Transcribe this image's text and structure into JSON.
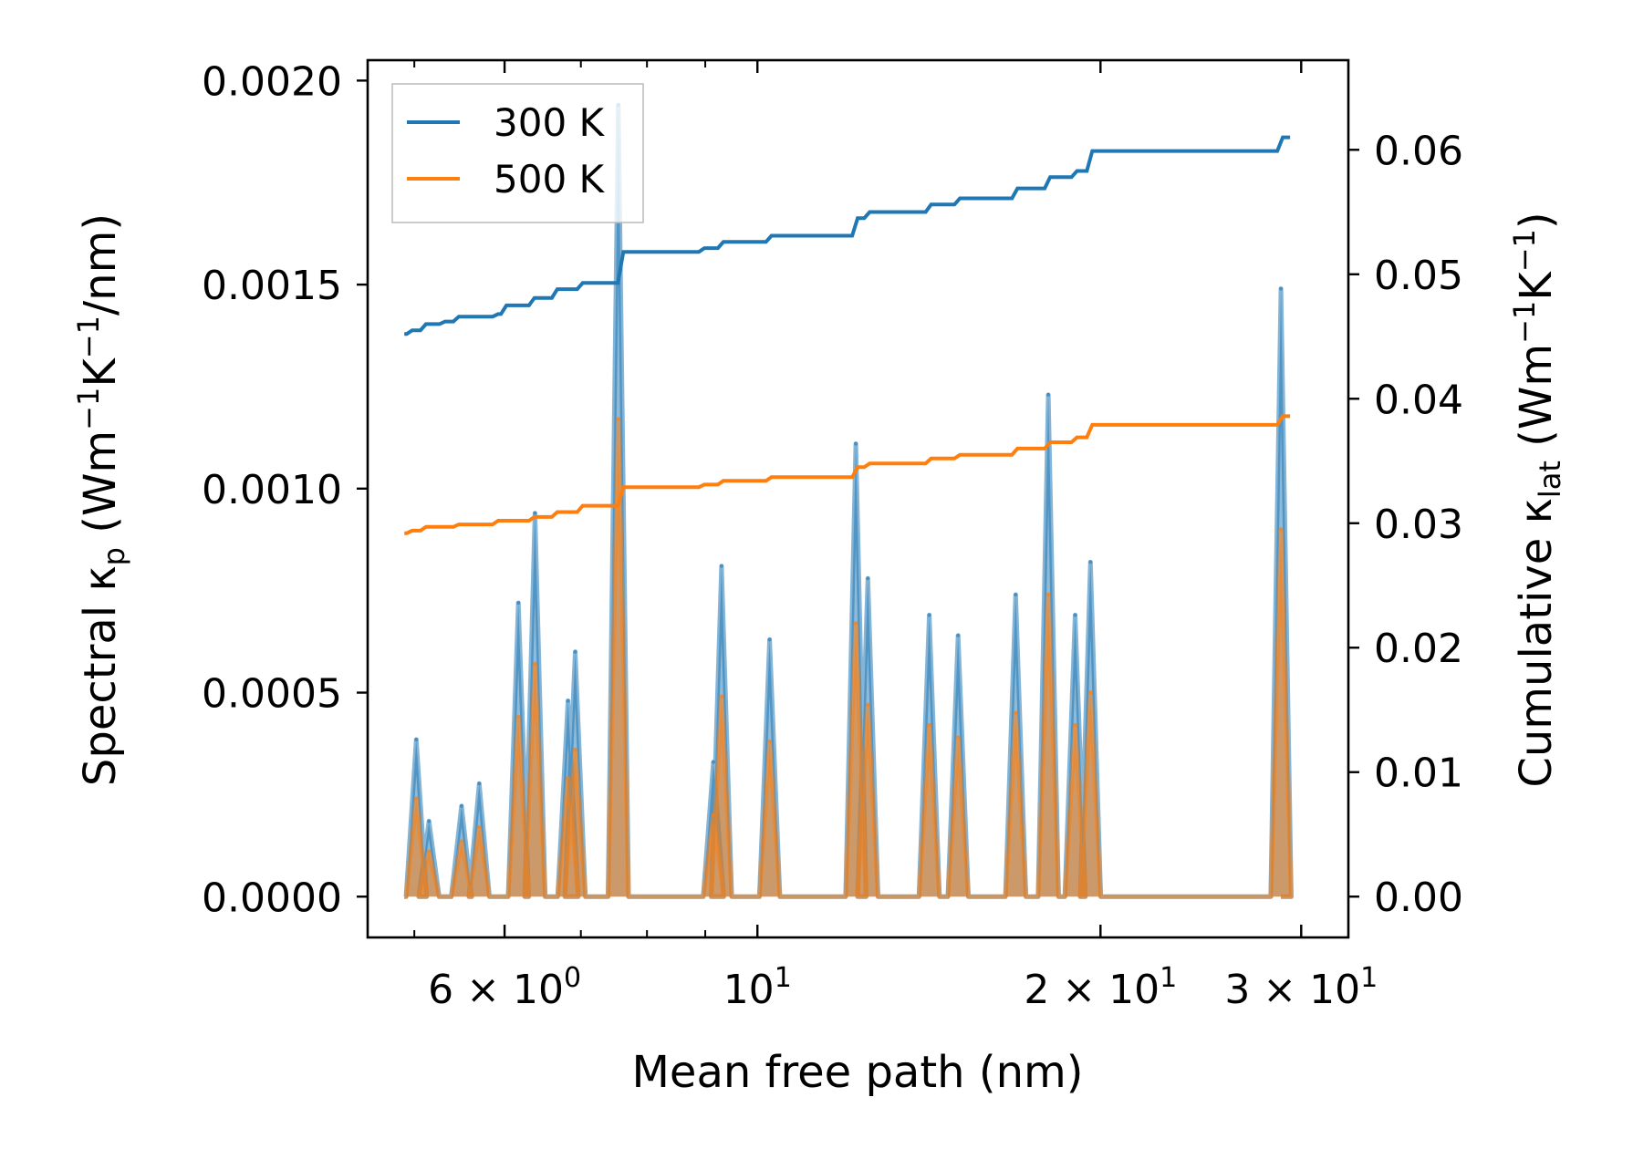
{
  "chart_data": {
    "type": "line",
    "xscale": "log",
    "xlabel": "Mean free path (nm)",
    "ylabel_left_parts": [
      "Spectral κ",
      "p",
      " (Wm",
      "−1",
      "K",
      "−1",
      "/nm)"
    ],
    "ylabel_right_parts": [
      "Cumulative κ",
      "lat",
      " (Wm",
      "−1",
      "K",
      "−1",
      ")"
    ],
    "xlim": [
      4.55,
      33
    ],
    "ylim_left": [
      -0.0001,
      0.00205
    ],
    "ylim_right": [
      -0.00328,
      0.0672
    ],
    "x_ticks": [
      {
        "value": 6,
        "mantissa": "6",
        "exp": "0"
      },
      {
        "value": 10,
        "mantissa": "",
        "exp": "1"
      },
      {
        "value": 20,
        "mantissa": "2",
        "exp": "1"
      },
      {
        "value": 30,
        "mantissa": "3",
        "exp": "1"
      }
    ],
    "x_minor_ticks": [
      5,
      7,
      8,
      9
    ],
    "y_left_ticks": [
      {
        "value": 0,
        "label": "0.0000"
      },
      {
        "value": 0.0005,
        "label": "0.0005"
      },
      {
        "value": 0.001,
        "label": "0.0010"
      },
      {
        "value": 0.0015,
        "label": "0.0015"
      },
      {
        "value": 0.002,
        "label": "0.0020"
      }
    ],
    "y_right_ticks": [
      {
        "value": 0,
        "label": "0.00"
      },
      {
        "value": 0.01,
        "label": "0.01"
      },
      {
        "value": 0.02,
        "label": "0.02"
      },
      {
        "value": 0.03,
        "label": "0.03"
      },
      {
        "value": 0.04,
        "label": "0.04"
      },
      {
        "value": 0.05,
        "label": "0.05"
      },
      {
        "value": 0.06,
        "label": "0.06"
      }
    ],
    "legend": {
      "position": "top-left",
      "entries": [
        "300 K",
        "500 K"
      ]
    },
    "series": [
      {
        "name": "300 K",
        "color": "#1f77b4",
        "cumulative": [
          [
            4.9,
            0.0452
          ],
          [
            4.96,
            0.0455
          ],
          [
            5.1,
            0.046
          ],
          [
            5.3,
            0.0462
          ],
          [
            5.45,
            0.0466
          ],
          [
            5.9,
            0.0468
          ],
          [
            6.0,
            0.0475
          ],
          [
            6.35,
            0.0481
          ],
          [
            6.65,
            0.0488
          ],
          [
            7.0,
            0.0493
          ],
          [
            7.6,
            0.0518
          ],
          [
            8.95,
            0.0521
          ],
          [
            9.3,
            0.0526
          ],
          [
            10.25,
            0.0531
          ],
          [
            12.2,
            0.0545
          ],
          [
            12.5,
            0.055
          ],
          [
            14.15,
            0.0556
          ],
          [
            15.0,
            0.0561
          ],
          [
            16.85,
            0.0569
          ],
          [
            18.0,
            0.0578
          ],
          [
            19.0,
            0.0583
          ],
          [
            19.6,
            0.0599
          ],
          [
            28.8,
            0.061
          ]
        ],
        "spikes": [
          [
            5.02,
            0.000385
          ],
          [
            5.15,
            0.000185
          ],
          [
            5.5,
            0.000222
          ],
          [
            5.7,
            0.000277
          ],
          [
            6.17,
            0.00072
          ],
          [
            6.38,
            0.00094
          ],
          [
            6.82,
            0.00048
          ],
          [
            6.92,
            0.0006
          ],
          [
            7.55,
            0.00194
          ],
          [
            9.15,
            0.00033
          ],
          [
            9.3,
            0.00081
          ],
          [
            10.25,
            0.00063
          ],
          [
            12.2,
            0.00111
          ],
          [
            12.5,
            0.00078
          ],
          [
            14.15,
            0.00069
          ],
          [
            15.0,
            0.00064
          ],
          [
            16.85,
            0.00074
          ],
          [
            18.0,
            0.00123
          ],
          [
            19.0,
            0.00069
          ],
          [
            19.6,
            0.00082
          ],
          [
            28.8,
            0.00149
          ]
        ]
      },
      {
        "name": "500 K",
        "color": "#ff7f0e",
        "cumulative": [
          [
            4.9,
            0.0292
          ],
          [
            4.96,
            0.0294
          ],
          [
            5.1,
            0.0297
          ],
          [
            5.45,
            0.0299
          ],
          [
            5.9,
            0.0302
          ],
          [
            6.35,
            0.0305
          ],
          [
            6.65,
            0.0309
          ],
          [
            7.0,
            0.0314
          ],
          [
            7.6,
            0.0329
          ],
          [
            8.95,
            0.0331
          ],
          [
            9.3,
            0.0334
          ],
          [
            10.25,
            0.0337
          ],
          [
            12.2,
            0.0345
          ],
          [
            12.5,
            0.0348
          ],
          [
            14.15,
            0.0352
          ],
          [
            15.0,
            0.0355
          ],
          [
            16.85,
            0.036
          ],
          [
            18.0,
            0.0365
          ],
          [
            19.0,
            0.0369
          ],
          [
            19.6,
            0.0379
          ],
          [
            28.8,
            0.0386
          ]
        ],
        "spikes": [
          [
            5.02,
            0.00024
          ],
          [
            5.15,
            0.00011
          ],
          [
            5.5,
            0.000135
          ],
          [
            5.7,
            0.00017
          ],
          [
            6.17,
            0.00044
          ],
          [
            6.38,
            0.00057
          ],
          [
            6.82,
            0.00029
          ],
          [
            6.92,
            0.00036
          ],
          [
            7.55,
            0.00117
          ],
          [
            9.15,
            0.0002
          ],
          [
            9.3,
            0.00049
          ],
          [
            10.25,
            0.00038
          ],
          [
            12.2,
            0.00067
          ],
          [
            12.5,
            0.00047
          ],
          [
            14.15,
            0.00042
          ],
          [
            15.0,
            0.00039
          ],
          [
            16.85,
            0.00045
          ],
          [
            18.0,
            0.00074
          ],
          [
            19.0,
            0.00042
          ],
          [
            19.6,
            0.0005
          ],
          [
            28.8,
            0.0009
          ]
        ]
      }
    ]
  }
}
